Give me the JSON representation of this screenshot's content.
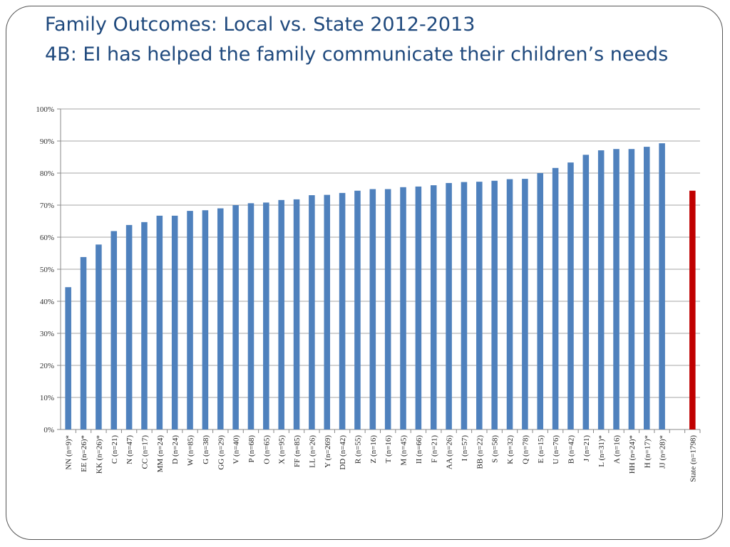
{
  "title": {
    "line1": "Family Outcomes: Local vs. State 2012-2013",
    "line2": "4B: EI has helped the family communicate their children’s needs"
  },
  "chart_data": {
    "type": "bar",
    "y_ticks": [
      "0%",
      "10%",
      "20%",
      "30%",
      "40%",
      "50%",
      "60%",
      "70%",
      "80%",
      "90%",
      "100%"
    ],
    "ylim": [
      0,
      100
    ],
    "grid": true,
    "colors": {
      "local": "#4f81bd",
      "state": "#c00000"
    },
    "categories": [
      "NN (n=9)*",
      "EE (n=26)*",
      "KK (n=26)*",
      "C (n=21)",
      "N (n=47)",
      "CC (n=17)",
      "MM (n=24)",
      "D (n=24)",
      "W (n=85)",
      "G (n=38)",
      "GG (n=29)",
      "V (n=40)",
      "P (n=68)",
      "O (n=65)",
      "X (n=95)",
      "FF (n=85)",
      "LL (n=26)",
      "Y (n=269)",
      "DD (n=42)",
      "R (n=55)",
      "Z (n=16)",
      "T (n=16)",
      "M (n=45)",
      "II (n=66)",
      "F (n=21)",
      "AA (n=26)",
      "I (n=57)",
      "BB (n=22)",
      "S (n=58)",
      "K (n=32)",
      "Q (n=78)",
      "E (n=15)",
      "U (n=76)",
      "B (n=42)",
      "J (n=21)",
      "L (n=31)*",
      "A (n=16)",
      "HH (n=24)*",
      "H (n=17)*",
      "JJ (n=28)*",
      "",
      "State (n=1798)"
    ],
    "values": [
      44.4,
      53.8,
      57.7,
      61.9,
      63.8,
      64.7,
      66.7,
      66.7,
      68.2,
      68.4,
      69.0,
      70.0,
      70.6,
      70.8,
      71.6,
      71.8,
      73.1,
      73.2,
      73.8,
      74.5,
      75.0,
      75.0,
      75.6,
      75.8,
      76.2,
      76.9,
      77.2,
      77.3,
      77.6,
      78.1,
      78.2,
      80.0,
      81.6,
      83.3,
      85.7,
      87.1,
      87.5,
      87.5,
      88.2,
      89.3,
      null,
      74.5
    ],
    "highlight_index": 41
  }
}
